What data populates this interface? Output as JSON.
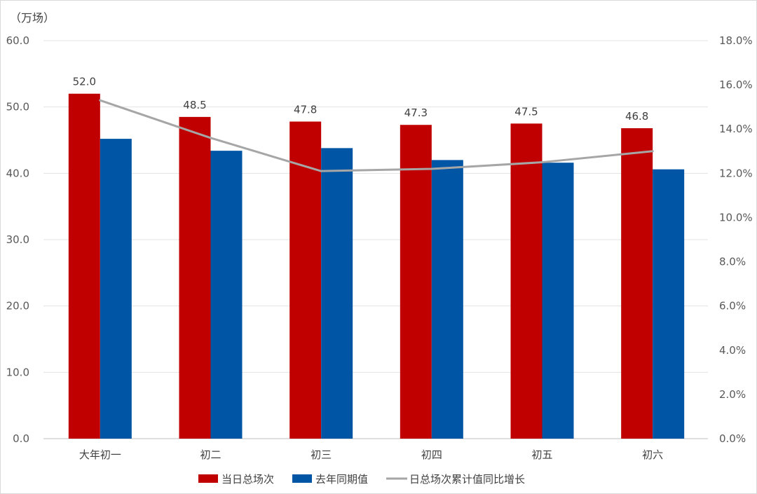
{
  "chart_data": {
    "type": "bar",
    "unit_label": "（万场）",
    "categories": [
      "大年初一",
      "初二",
      "初三",
      "初四",
      "初五",
      "初六"
    ],
    "series": [
      {
        "name": "当日总场次",
        "kind": "bar",
        "axis": "left",
        "color": "#C00000",
        "values": [
          52.0,
          48.5,
          47.8,
          47.3,
          47.5,
          46.8
        ],
        "show_labels": true
      },
      {
        "name": "去年同期值",
        "kind": "bar",
        "axis": "left",
        "color": "#0055A4",
        "values": [
          45.2,
          43.4,
          43.8,
          42.0,
          41.6,
          40.6
        ],
        "show_labels": false
      },
      {
        "name": "日总场次累计值同比增长",
        "kind": "line",
        "axis": "right",
        "color": "#A6A6A6",
        "values": [
          15.3,
          13.6,
          12.1,
          12.2,
          12.5,
          13.0
        ],
        "show_labels": false
      }
    ],
    "left_axis": {
      "min": 0,
      "max": 60,
      "step": 10,
      "ticks": [
        "0.0",
        "10.0",
        "20.0",
        "30.0",
        "40.0",
        "50.0",
        "60.0"
      ]
    },
    "right_axis": {
      "min": 0,
      "max": 18,
      "step": 2,
      "ticks": [
        "0.0%",
        "2.0%",
        "4.0%",
        "6.0%",
        "8.0%",
        "10.0%",
        "12.0%",
        "14.0%",
        "16.0%",
        "18.0%"
      ]
    },
    "grid": true,
    "legend_position": "bottom"
  }
}
